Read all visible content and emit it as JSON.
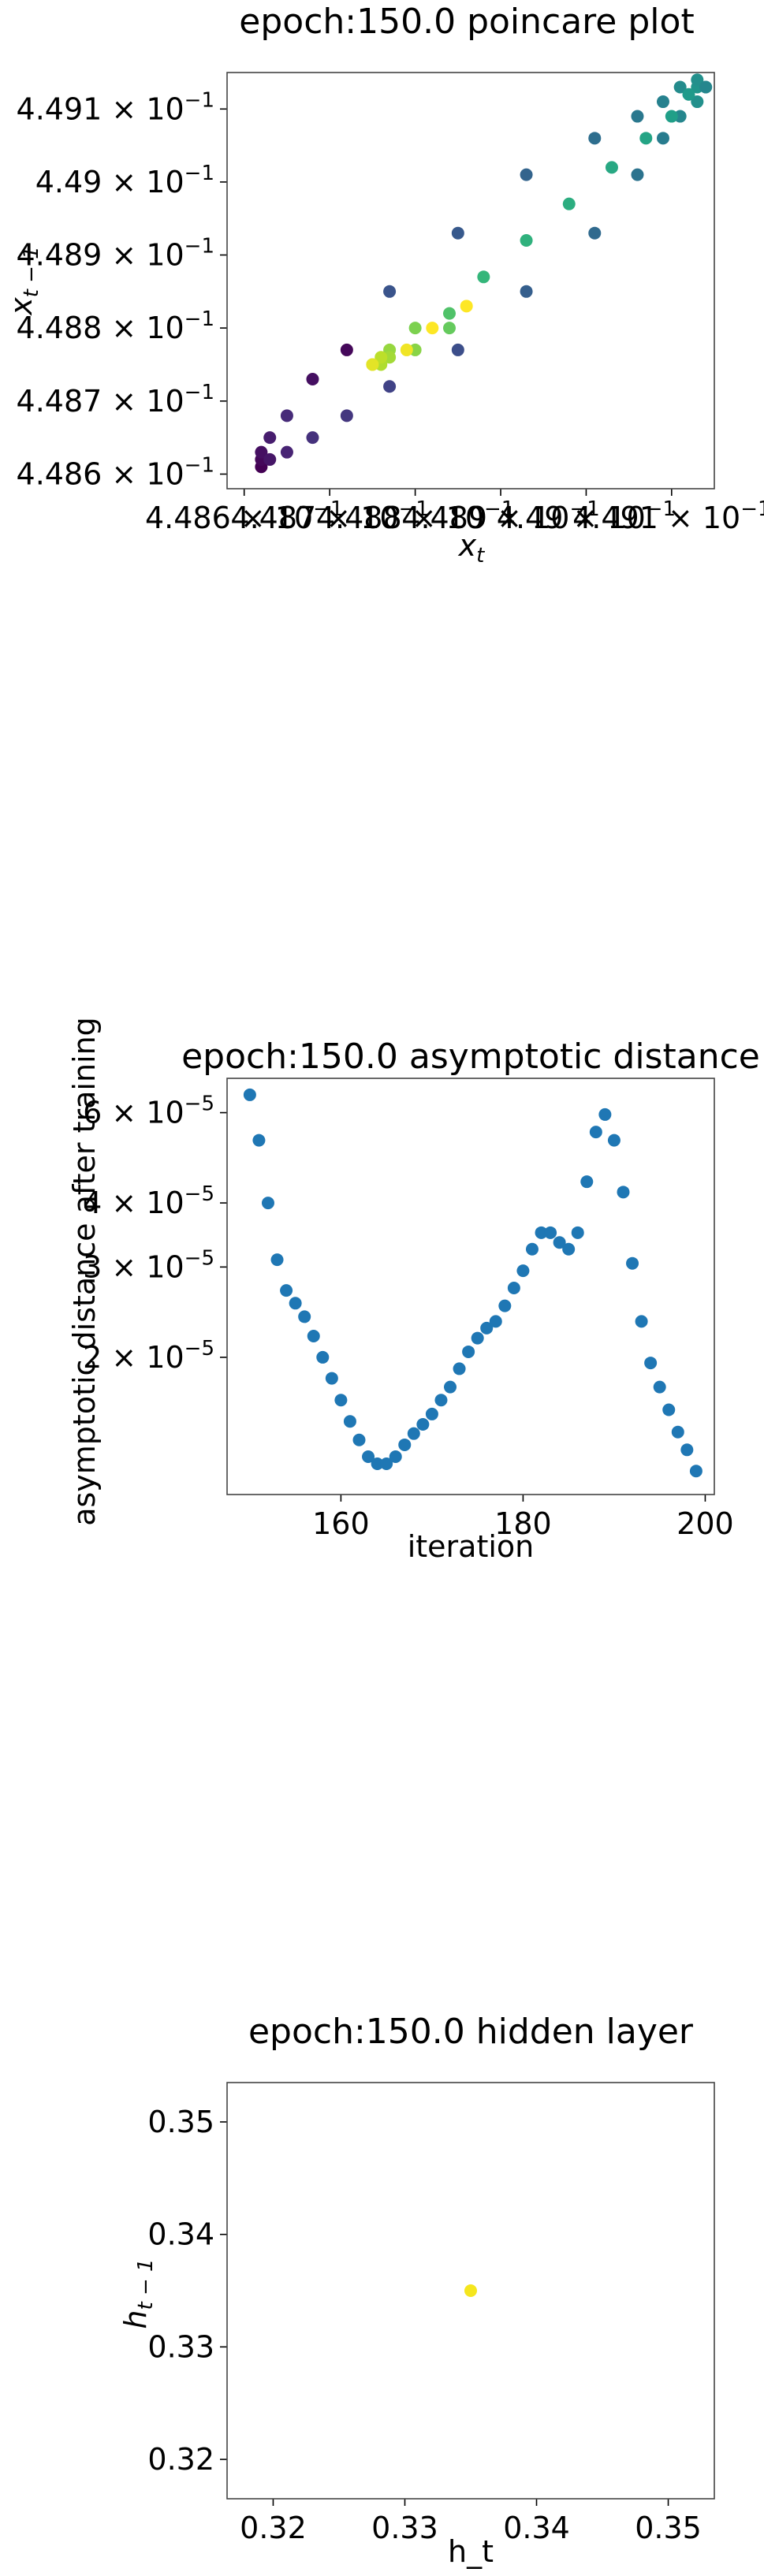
{
  "chart_data": [
    {
      "type": "scatter",
      "title": "epoch:150.0 poincare plot",
      "xlabel": "x_t",
      "ylabel": "x_{t-1}",
      "xscale": "log",
      "yscale": "log",
      "xlim": [
        0.44858,
        0.44915
      ],
      "ylim": [
        0.44858,
        0.44915
      ],
      "grid": false,
      "legend": "none",
      "colormap": "viridis",
      "x_ticks": [
        {
          "value": 0.4486,
          "label": "4.486 × 10⁻¹"
        },
        {
          "value": 0.4487,
          "label": "4.487 × 10⁻¹"
        },
        {
          "value": 0.4488,
          "label": "4.488 × 10⁻¹"
        },
        {
          "value": 0.4489,
          "label": "4.489 × 10⁻¹"
        },
        {
          "value": 0.449,
          "label": "4.49 × 10⁻¹"
        },
        {
          "value": 0.4491,
          "label": "4.491 × 10⁻¹"
        }
      ],
      "y_ticks": [
        {
          "value": 0.4486,
          "label": "4.486 × 10⁻¹"
        },
        {
          "value": 0.4487,
          "label": "4.487 × 10⁻¹"
        },
        {
          "value": 0.4488,
          "label": "4.488 × 10⁻¹"
        },
        {
          "value": 0.4489,
          "label": "4.489 × 10⁻¹"
        },
        {
          "value": 0.449,
          "label": "4.49 × 10⁻¹"
        },
        {
          "value": 0.4491,
          "label": "4.491 × 10⁻¹"
        }
      ],
      "points": [
        {
          "x": 0.44862,
          "y": 0.44861,
          "c": 0.0
        },
        {
          "x": 0.44862,
          "y": 0.44862,
          "c": 0.02
        },
        {
          "x": 0.44862,
          "y": 0.44863,
          "c": 0.04
        },
        {
          "x": 0.44863,
          "y": 0.44862,
          "c": 0.06
        },
        {
          "x": 0.44863,
          "y": 0.44865,
          "c": 0.08
        },
        {
          "x": 0.44865,
          "y": 0.44863,
          "c": 0.1
        },
        {
          "x": 0.44865,
          "y": 0.44868,
          "c": 0.12
        },
        {
          "x": 0.44868,
          "y": 0.44865,
          "c": 0.14
        },
        {
          "x": 0.44868,
          "y": 0.44873,
          "c": 0.04
        },
        {
          "x": 0.44872,
          "y": 0.44868,
          "c": 0.16
        },
        {
          "x": 0.44872,
          "y": 0.44877,
          "c": 0.02
        },
        {
          "x": 0.44877,
          "y": 0.44872,
          "c": 0.2
        },
        {
          "x": 0.44877,
          "y": 0.44885,
          "c": 0.26
        },
        {
          "x": 0.44885,
          "y": 0.44877,
          "c": 0.24
        },
        {
          "x": 0.44885,
          "y": 0.44893,
          "c": 0.28
        },
        {
          "x": 0.44893,
          "y": 0.44885,
          "c": 0.3
        },
        {
          "x": 0.44893,
          "y": 0.44901,
          "c": 0.32
        },
        {
          "x": 0.44901,
          "y": 0.44893,
          "c": 0.34
        },
        {
          "x": 0.44901,
          "y": 0.44906,
          "c": 0.36
        },
        {
          "x": 0.44906,
          "y": 0.44901,
          "c": 0.38
        },
        {
          "x": 0.44906,
          "y": 0.44909,
          "c": 0.4
        },
        {
          "x": 0.44909,
          "y": 0.44906,
          "c": 0.42
        },
        {
          "x": 0.44909,
          "y": 0.44911,
          "c": 0.44
        },
        {
          "x": 0.44911,
          "y": 0.44909,
          "c": 0.46
        },
        {
          "x": 0.44911,
          "y": 0.44913,
          "c": 0.48
        },
        {
          "x": 0.44913,
          "y": 0.44911,
          "c": 0.5
        },
        {
          "x": 0.44913,
          "y": 0.44913,
          "c": 0.52
        },
        {
          "x": 0.44913,
          "y": 0.44914,
          "c": 0.5
        },
        {
          "x": 0.44914,
          "y": 0.44913,
          "c": 0.48
        },
        {
          "x": 0.44914,
          "y": 0.44913,
          "c": 0.46
        },
        {
          "x": 0.44912,
          "y": 0.44912,
          "c": 0.54
        },
        {
          "x": 0.4491,
          "y": 0.44909,
          "c": 0.56
        },
        {
          "x": 0.44907,
          "y": 0.44906,
          "c": 0.58
        },
        {
          "x": 0.44903,
          "y": 0.44902,
          "c": 0.6
        },
        {
          "x": 0.44898,
          "y": 0.44897,
          "c": 0.62
        },
        {
          "x": 0.44893,
          "y": 0.44892,
          "c": 0.64
        },
        {
          "x": 0.44888,
          "y": 0.44887,
          "c": 0.66
        },
        {
          "x": 0.44884,
          "y": 0.44882,
          "c": 0.72
        },
        {
          "x": 0.44884,
          "y": 0.4488,
          "c": 0.76
        },
        {
          "x": 0.4488,
          "y": 0.4488,
          "c": 0.8
        },
        {
          "x": 0.4488,
          "y": 0.44877,
          "c": 0.82
        },
        {
          "x": 0.44877,
          "y": 0.44877,
          "c": 0.84
        },
        {
          "x": 0.44877,
          "y": 0.44876,
          "c": 0.86
        },
        {
          "x": 0.44876,
          "y": 0.44875,
          "c": 0.88
        },
        {
          "x": 0.44876,
          "y": 0.44876,
          "c": 0.9
        },
        {
          "x": 0.44875,
          "y": 0.44875,
          "c": 0.94
        },
        {
          "x": 0.44875,
          "y": 0.44875,
          "c": 0.96
        },
        {
          "x": 0.44879,
          "y": 0.44877,
          "c": 0.98
        },
        {
          "x": 0.44882,
          "y": 0.4488,
          "c": 1.0
        },
        {
          "x": 0.44886,
          "y": 0.44883,
          "c": 1.0
        }
      ]
    },
    {
      "type": "scatter",
      "title": "epoch:150.0 asymptotic distance",
      "xlabel": "iteration",
      "ylabel": "asymptotic distance after training",
      "yscale": "log",
      "xlim": [
        147.5,
        201
      ],
      "ylim": [
        1.08e-05,
        7e-05
      ],
      "grid": false,
      "legend": "none",
      "color": "#1f77b4",
      "x_ticks": [
        {
          "value": 160,
          "label": "160"
        },
        {
          "value": 180,
          "label": "180"
        },
        {
          "value": 200,
          "label": "200"
        }
      ],
      "y_ticks": [
        {
          "value": 2e-05,
          "label": "2 × 10⁻⁵"
        },
        {
          "value": 3e-05,
          "label": "3 × 10⁻⁵"
        },
        {
          "value": 4e-05,
          "label": "4 × 10⁻⁵"
        },
        {
          "value": 6e-05,
          "label": "6 × 10⁻⁵"
        }
      ],
      "x": [
        150,
        151,
        152,
        153,
        154,
        155,
        156,
        157,
        158,
        159,
        160,
        161,
        162,
        163,
        164,
        165,
        166,
        167,
        168,
        169,
        170,
        171,
        172,
        173,
        174,
        175,
        176,
        177,
        178,
        179,
        180,
        181,
        182,
        183,
        184,
        185,
        186,
        187,
        188,
        189,
        190,
        191,
        192,
        193,
        194,
        195,
        196,
        197,
        198,
        199
      ],
      "y": [
        6.5e-05,
        5.3e-05,
        4e-05,
        3.1e-05,
        2.7e-05,
        2.55e-05,
        2.4e-05,
        2.2e-05,
        2e-05,
        1.82e-05,
        1.65e-05,
        1.5e-05,
        1.38e-05,
        1.28e-05,
        1.24e-05,
        1.24e-05,
        1.28e-05,
        1.35e-05,
        1.42e-05,
        1.48e-05,
        1.55e-05,
        1.65e-05,
        1.75e-05,
        1.9e-05,
        2.05e-05,
        2.18e-05,
        2.28e-05,
        2.35e-05,
        2.52e-05,
        2.73e-05,
        2.95e-05,
        3.25e-05,
        3.5e-05,
        3.5e-05,
        3.35e-05,
        3.25e-05,
        3.5e-05,
        4.4e-05,
        5.5e-05,
        5.95e-05,
        5.3e-05,
        4.2e-05,
        3.05e-05,
        2.35e-05,
        1.95e-05,
        1.75e-05,
        1.58e-05,
        1.43e-05,
        1.32e-05,
        1.2e-05
      ]
    },
    {
      "type": "scatter",
      "title": "epoch:150.0 hidden layer",
      "xlabel": "h_t",
      "ylabel": "h_{t-1}",
      "xlim": [
        0.3165,
        0.3535
      ],
      "ylim": [
        0.3165,
        0.3535
      ],
      "grid": false,
      "legend": "none",
      "color": "#f5e61e",
      "x_ticks": [
        {
          "value": 0.32,
          "label": "0.32"
        },
        {
          "value": 0.33,
          "label": "0.33"
        },
        {
          "value": 0.34,
          "label": "0.34"
        },
        {
          "value": 0.35,
          "label": "0.35"
        }
      ],
      "y_ticks": [
        {
          "value": 0.32,
          "label": "0.32"
        },
        {
          "value": 0.33,
          "label": "0.33"
        },
        {
          "value": 0.34,
          "label": "0.34"
        },
        {
          "value": 0.35,
          "label": "0.35"
        }
      ],
      "points": [
        {
          "x": 0.335,
          "y": 0.335
        }
      ]
    }
  ]
}
